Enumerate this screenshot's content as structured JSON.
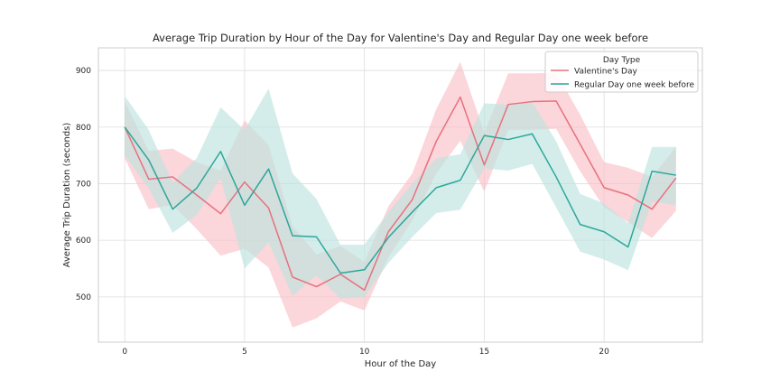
{
  "chart_data": {
    "type": "line",
    "title": "Average Trip Duration by Hour of the Day for Valentine's Day and Regular Day one week before",
    "xlabel": "Hour of the Day",
    "ylabel": "Average Trip Duration (seconds)",
    "xlim": [
      -1.1,
      24.1
    ],
    "ylim": [
      420,
      940
    ],
    "xticks": [
      0,
      5,
      10,
      15,
      20
    ],
    "yticks": [
      500,
      600,
      700,
      800,
      900
    ],
    "grid": true,
    "legend": {
      "title": "Day Type",
      "placement": "top-right"
    },
    "x": [
      0,
      1,
      2,
      3,
      4,
      5,
      6,
      7,
      8,
      9,
      10,
      11,
      12,
      13,
      14,
      15,
      16,
      17,
      18,
      19,
      20,
      21,
      22,
      23
    ],
    "series": [
      {
        "name": "Valentine's Day",
        "color": "#e8707e",
        "band_color": "#f9c0c8",
        "values": [
          800,
          708,
          712,
          680,
          647,
          703,
          657,
          535,
          518,
          540,
          512,
          615,
          672,
          775,
          853,
          733,
          840,
          845,
          846,
          770,
          693,
          680,
          655,
          710
        ],
        "lower": [
          745,
          655,
          662,
          620,
          573,
          585,
          552,
          446,
          462,
          492,
          476,
          570,
          635,
          718,
          776,
          686,
          795,
          795,
          797,
          722,
          658,
          632,
          604,
          652
        ],
        "upper": [
          845,
          758,
          762,
          738,
          723,
          812,
          768,
          625,
          575,
          590,
          562,
          660,
          718,
          832,
          915,
          790,
          895,
          895,
          896,
          822,
          738,
          728,
          712,
          765
        ]
      },
      {
        "name": "Regular Day one week before",
        "color": "#2aa79b",
        "band_color": "#bde3de",
        "values": [
          800,
          742,
          655,
          692,
          757,
          662,
          726,
          608,
          606,
          542,
          548,
          605,
          650,
          693,
          706,
          785,
          778,
          788,
          712,
          628,
          615,
          588,
          722,
          715
        ],
        "lower": [
          750,
          692,
          613,
          645,
          710,
          550,
          596,
          502,
          538,
          497,
          500,
          560,
          606,
          648,
          654,
          727,
          723,
          735,
          658,
          580,
          566,
          547,
          668,
          662
        ],
        "upper": [
          855,
          795,
          702,
          745,
          835,
          795,
          868,
          718,
          673,
          592,
          592,
          650,
          700,
          745,
          752,
          842,
          840,
          844,
          775,
          682,
          665,
          630,
          765,
          765
        ]
      }
    ]
  }
}
